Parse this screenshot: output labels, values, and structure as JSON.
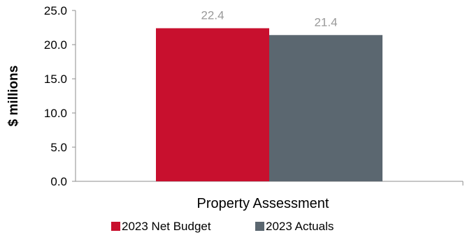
{
  "chart_data": {
    "type": "bar",
    "categories": [
      "Property Assessment"
    ],
    "series": [
      {
        "name": "2023 Net Budget",
        "values": [
          22.4
        ],
        "color": "#C8102E"
      },
      {
        "name": "2023 Actuals",
        "values": [
          21.4
        ],
        "color": "#5B6770"
      }
    ],
    "data_labels": [
      "22.4",
      "21.4"
    ],
    "ylabel": "$ millions",
    "xlabel": "",
    "ylim": [
      0,
      25
    ],
    "yticks": [
      "0.0",
      "5.0",
      "10.0",
      "15.0",
      "20.0",
      "25.0"
    ],
    "grid": false,
    "legend": "bottom"
  }
}
